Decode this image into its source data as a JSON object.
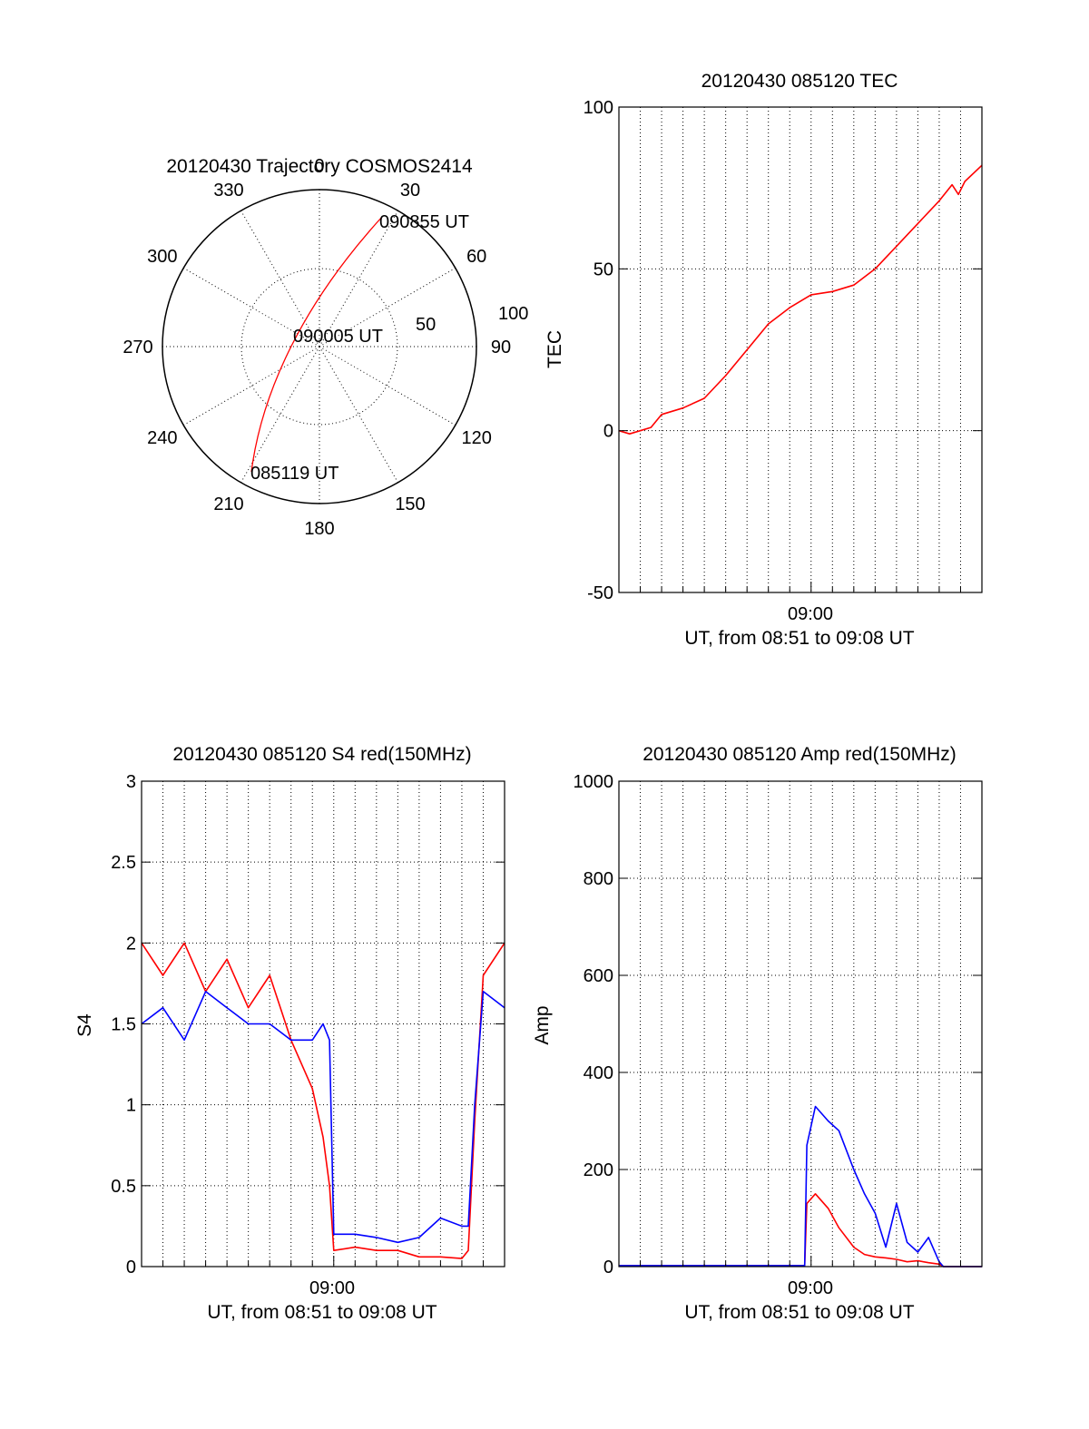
{
  "polar": {
    "title": "20120430 Trajectory COSMOS2414",
    "angles": [
      0,
      30,
      60,
      90,
      120,
      150,
      180,
      210,
      240,
      270,
      300,
      330
    ],
    "angle_labels": [
      "0",
      "30",
      "60",
      "90",
      "120",
      "150",
      "180",
      "210",
      "240",
      "270",
      "300",
      "330"
    ],
    "radial_labels": [
      "50",
      "100"
    ],
    "annotations": [
      "090855 UT",
      "090005 UT",
      "085119 UT"
    ],
    "trajectory_color": "#ff0000"
  },
  "chart_data": [
    {
      "type": "line",
      "title": "20120430 085120 TEC",
      "xlabel": "UT, from 08:51 to 09:08 UT",
      "ylabel": "TEC",
      "xtick_labels": [
        "09:00"
      ],
      "ytick_labels": [
        "-50",
        "0",
        "50",
        "100"
      ],
      "ylim": [
        -50,
        100
      ],
      "x_minutes": [
        0,
        0.5,
        1,
        1.5,
        2,
        3,
        4,
        5,
        6,
        7,
        8,
        9,
        10,
        11,
        12,
        13,
        14,
        15,
        15.6,
        15.9,
        16.2,
        17
      ],
      "series": [
        {
          "color": "#ff0000",
          "values": [
            0,
            -1,
            0,
            1,
            5,
            7,
            10,
            17,
            25,
            33,
            38,
            42,
            43,
            45,
            50,
            57,
            64,
            71,
            76,
            73,
            77,
            82
          ]
        }
      ]
    },
    {
      "type": "line",
      "title": "20120430 085120 S4 red(150MHz)",
      "xlabel": "UT, from 08:51 to 09:08 UT",
      "ylabel": "S4",
      "xtick_labels": [
        "09:00"
      ],
      "ytick_labels": [
        "0",
        "0.5",
        "1",
        "1.5",
        "2",
        "2.5",
        "3"
      ],
      "ylim": [
        0,
        3
      ],
      "x_minutes": [
        0,
        1,
        2,
        3,
        4,
        5,
        6,
        7,
        8,
        8.5,
        8.8,
        9,
        10,
        11,
        12,
        13,
        14,
        15,
        15.3,
        15.6,
        16,
        17
      ],
      "series": [
        {
          "color": "#ff0000",
          "values": [
            2.0,
            1.8,
            2.0,
            1.7,
            1.9,
            1.6,
            1.8,
            1.4,
            1.1,
            0.8,
            0.5,
            0.1,
            0.12,
            0.1,
            0.1,
            0.06,
            0.06,
            0.05,
            0.1,
            0.9,
            1.8,
            2.0
          ]
        },
        {
          "color": "#0000ff",
          "values": [
            1.5,
            1.6,
            1.4,
            1.7,
            1.6,
            1.5,
            1.5,
            1.4,
            1.4,
            1.5,
            1.4,
            0.2,
            0.2,
            0.18,
            0.15,
            0.18,
            0.3,
            0.25,
            0.25,
            1.0,
            1.7,
            1.6
          ]
        }
      ]
    },
    {
      "type": "line",
      "title": "20120430 085120 Amp red(150MHz)",
      "xlabel": "UT, from 08:51 to 09:08 UT",
      "ylabel": "Amp",
      "xtick_labels": [
        "09:00"
      ],
      "ytick_labels": [
        "0",
        "200",
        "400",
        "600",
        "800",
        "1000"
      ],
      "ylim": [
        0,
        1000
      ],
      "x_minutes": [
        0,
        2,
        4,
        6,
        8,
        8.7,
        8.8,
        9.2,
        9.8,
        10.3,
        11,
        11.5,
        12,
        12.5,
        13,
        13.5,
        14,
        14.5,
        15,
        15.2,
        16,
        17
      ],
      "series": [
        {
          "color": "#ff0000",
          "values": [
            2,
            2,
            2,
            2,
            2,
            2,
            130,
            150,
            120,
            80,
            40,
            25,
            20,
            18,
            15,
            10,
            12,
            8,
            5,
            0,
            0,
            0
          ]
        },
        {
          "color": "#0000ff",
          "values": [
            2,
            2,
            2,
            2,
            2,
            2,
            250,
            330,
            300,
            280,
            200,
            150,
            110,
            40,
            130,
            50,
            30,
            60,
            10,
            0,
            0,
            0
          ]
        }
      ]
    }
  ]
}
